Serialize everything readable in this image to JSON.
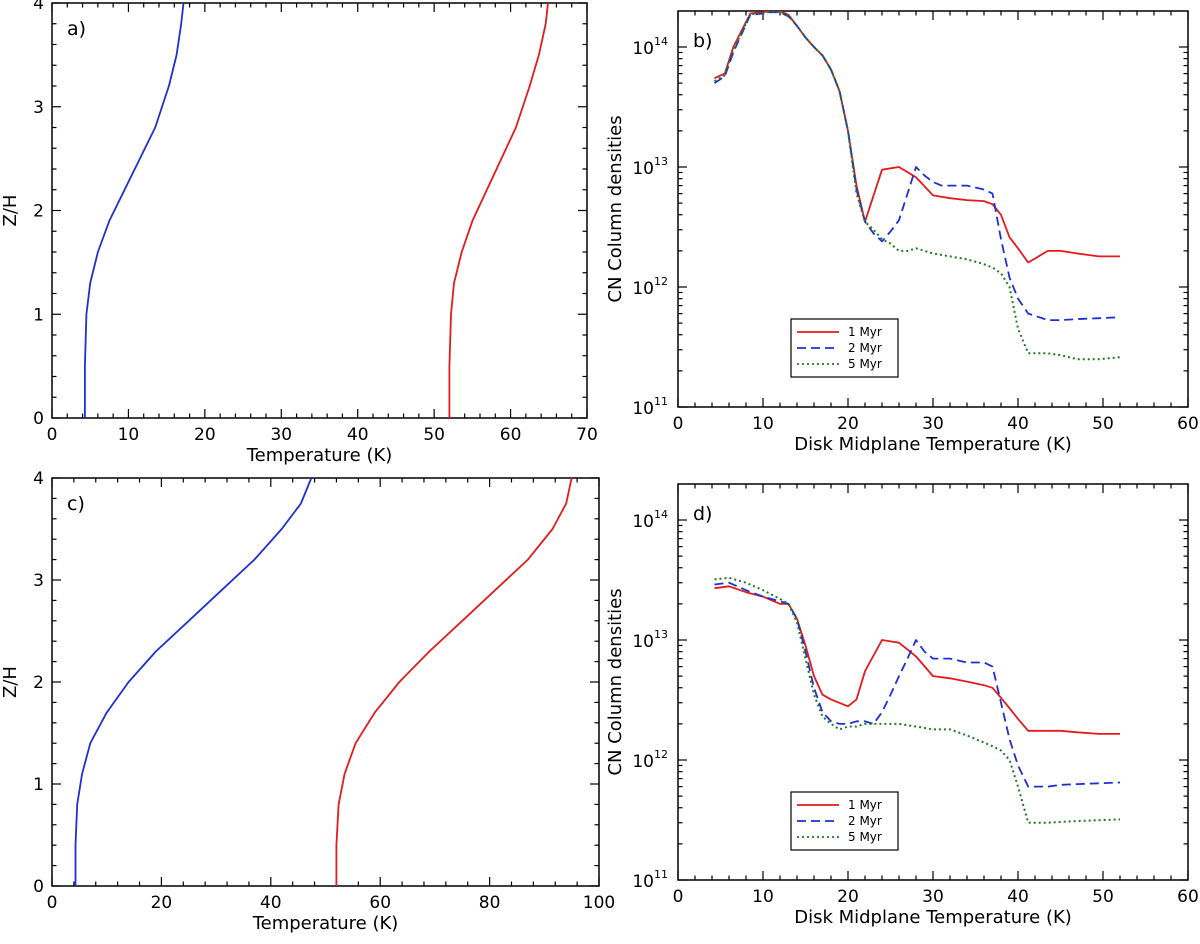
{
  "colors": {
    "red": "#e41a1c",
    "blue": "#1f2fd6",
    "green": "#1f7a1f",
    "axis": "#000000"
  },
  "chart_data": [
    {
      "id": "a",
      "type": "line",
      "label": "a)",
      "xlabel": "Temperature (K)",
      "ylabel": "Z/H",
      "xlim": [
        0,
        70
      ],
      "ylim": [
        0,
        4
      ],
      "xticks": [
        0,
        10,
        20,
        30,
        40,
        50,
        60,
        70
      ],
      "yticks": [
        0,
        1,
        2,
        3,
        4
      ],
      "series": [
        {
          "color": "blue",
          "style": "solid",
          "points": [
            [
              4.3,
              0
            ],
            [
              4.3,
              0.5
            ],
            [
              4.5,
              1.0
            ],
            [
              5.0,
              1.3
            ],
            [
              6.0,
              1.6
            ],
            [
              7.5,
              1.9
            ],
            [
              9.5,
              2.2
            ],
            [
              11.5,
              2.5
            ],
            [
              13.5,
              2.8
            ],
            [
              15.3,
              3.2
            ],
            [
              16.3,
              3.5
            ],
            [
              16.9,
              3.8
            ],
            [
              17.2,
              4.0
            ]
          ]
        },
        {
          "color": "red",
          "style": "solid",
          "points": [
            [
              52,
              0
            ],
            [
              52,
              0.5
            ],
            [
              52.2,
              1.0
            ],
            [
              52.6,
              1.3
            ],
            [
              53.6,
              1.6
            ],
            [
              55.0,
              1.9
            ],
            [
              56.9,
              2.2
            ],
            [
              58.8,
              2.5
            ],
            [
              60.7,
              2.8
            ],
            [
              62.5,
              3.2
            ],
            [
              63.7,
              3.5
            ],
            [
              64.6,
              3.8
            ],
            [
              64.9,
              4.0
            ]
          ]
        }
      ]
    },
    {
      "id": "b",
      "type": "line",
      "label": "b)",
      "xlabel": "Disk Midplane Temperature (K)",
      "ylabel": "CN Column densities",
      "xlim": [
        0,
        60
      ],
      "ylim_log10": [
        11,
        14.3
      ],
      "xticks": [
        0,
        10,
        20,
        30,
        40,
        50,
        60
      ],
      "yticks_log10": [
        11,
        12,
        13,
        14
      ],
      "legend": {
        "position": "lower-left",
        "entries": [
          "1 Myr",
          "2 Myr",
          "5 Myr"
        ]
      },
      "series": [
        {
          "color": "red",
          "style": "solid",
          "x": [
            4.3,
            5.5,
            6.5,
            8.5,
            10,
            11,
            12,
            13,
            14,
            15,
            16,
            17,
            18,
            19,
            20,
            21,
            22,
            24,
            26,
            28,
            30,
            32,
            34,
            36,
            37,
            38,
            39,
            40,
            41.2,
            43.5,
            45,
            47,
            49.5,
            52
          ],
          "y": [
            55000000000000.0,
            60000000000000.0,
            100000000000000.0,
            190000000000000.0,
            195000000000000.0,
            200000000000000.0,
            200000000000000.0,
            185000000000000.0,
            150000000000000.0,
            120000000000000.0,
            100000000000000.0,
            85000000000000.0,
            65000000000000.0,
            43000000000000.0,
            20000000000000.0,
            7000000000000.0,
            3500000000000.0,
            9500000000000.0,
            10000000000000.0,
            8200000000000.0,
            5800000000000.0,
            5500000000000.0,
            5300000000000.0,
            5200000000000.0,
            4900000000000.0,
            4000000000000.0,
            2600000000000.0,
            2100000000000.0,
            1600000000000.0,
            2000000000000.0,
            2000000000000.0,
            1900000000000.0,
            1800000000000.0,
            1800000000000.0
          ]
        },
        {
          "color": "blue",
          "style": "dashed",
          "x": [
            4.3,
            5.5,
            6.5,
            8.5,
            10,
            11,
            12,
            13,
            14,
            15,
            16,
            17,
            18,
            19,
            20,
            21,
            22,
            23,
            24,
            25,
            26,
            27,
            28,
            29,
            30,
            31,
            32,
            34,
            36,
            37,
            38,
            39,
            40,
            41.2,
            43.5,
            45,
            47,
            49.5,
            52
          ],
          "y": [
            50000000000000.0,
            57000000000000.0,
            90000000000000.0,
            185000000000000.0,
            190000000000000.0,
            195000000000000.0,
            195000000000000.0,
            180000000000000.0,
            150000000000000.0,
            120000000000000.0,
            100000000000000.0,
            85000000000000.0,
            65000000000000.0,
            43000000000000.0,
            20000000000000.0,
            6500000000000.0,
            3500000000000.0,
            2800000000000.0,
            2400000000000.0,
            2900000000000.0,
            3600000000000.0,
            6000000000000.0,
            10000000000000.0,
            8500000000000.0,
            7500000000000.0,
            7000000000000.0,
            7000000000000.0,
            7000000000000.0,
            6500000000000.0,
            6000000000000.0,
            2500000000000.0,
            1200000000000.0,
            800000000000.0,
            600000000000.0,
            530000000000.0,
            530000000000.0,
            540000000000.0,
            550000000000.0,
            560000000000.0
          ]
        },
        {
          "color": "green",
          "style": "dotted",
          "x": [
            4.3,
            5.5,
            6.5,
            8.5,
            10,
            11,
            12,
            13,
            14,
            15,
            16,
            17,
            18,
            19,
            20,
            21,
            22,
            23,
            24,
            25,
            26,
            27,
            28,
            29,
            30,
            32,
            34,
            36,
            37,
            38,
            39,
            40,
            41.2,
            43.5,
            45,
            47,
            49.5,
            52
          ],
          "y": [
            52000000000000.0,
            58000000000000.0,
            95000000000000.0,
            187000000000000.0,
            192000000000000.0,
            197000000000000.0,
            197000000000000.0,
            182000000000000.0,
            150000000000000.0,
            120000000000000.0,
            100000000000000.0,
            85000000000000.0,
            65000000000000.0,
            43000000000000.0,
            20000000000000.0,
            6000000000000.0,
            3500000000000.0,
            3000000000000.0,
            2500000000000.0,
            2300000000000.0,
            2000000000000.0,
            2000000000000.0,
            2100000000000.0,
            2000000000000.0,
            1900000000000.0,
            1800000000000.0,
            1700000000000.0,
            1550000000000.0,
            1450000000000.0,
            1300000000000.0,
            1000000000000.0,
            450000000000.0,
            280000000000.0,
            280000000000.0,
            270000000000.0,
            250000000000.0,
            250000000000.0,
            260000000000.0
          ]
        }
      ]
    },
    {
      "id": "c",
      "type": "line",
      "label": "c)",
      "xlabel": "Temperature (K)",
      "ylabel": "Z/H",
      "xlim": [
        0,
        100
      ],
      "ylim": [
        0,
        4
      ],
      "xticks": [
        0,
        20,
        40,
        60,
        80,
        100
      ],
      "yticks": [
        0,
        1,
        2,
        3,
        4
      ],
      "series": [
        {
          "color": "blue",
          "style": "solid",
          "points": [
            [
              4.3,
              0
            ],
            [
              4.3,
              0.4
            ],
            [
              4.6,
              0.8
            ],
            [
              5.5,
              1.1
            ],
            [
              7.0,
              1.4
            ],
            [
              10.0,
              1.7
            ],
            [
              14.0,
              2.0
            ],
            [
              19.0,
              2.3
            ],
            [
              25.0,
              2.6
            ],
            [
              31.0,
              2.9
            ],
            [
              37.0,
              3.2
            ],
            [
              42.0,
              3.5
            ],
            [
              45.5,
              3.75
            ],
            [
              47.4,
              4.0
            ]
          ]
        },
        {
          "color": "red",
          "style": "solid",
          "points": [
            [
              52,
              0
            ],
            [
              52,
              0.4
            ],
            [
              52.4,
              0.8
            ],
            [
              53.5,
              1.1
            ],
            [
              55.5,
              1.4
            ],
            [
              59.0,
              1.7
            ],
            [
              63.5,
              2.0
            ],
            [
              69.0,
              2.3
            ],
            [
              75.0,
              2.6
            ],
            [
              81.0,
              2.9
            ],
            [
              87.0,
              3.2
            ],
            [
              91.5,
              3.5
            ],
            [
              94.0,
              3.75
            ],
            [
              95.0,
              4.0
            ]
          ]
        }
      ]
    },
    {
      "id": "d",
      "type": "line",
      "label": "d)",
      "xlabel": "Disk Midplane Temperature (K)",
      "ylabel": "CN Column densities",
      "xlim": [
        0,
        60
      ],
      "ylim_log10": [
        11,
        14.3
      ],
      "xticks": [
        0,
        10,
        20,
        30,
        40,
        50,
        60
      ],
      "yticks_log10": [
        11,
        12,
        13,
        14
      ],
      "legend": {
        "position": "lower-left",
        "entries": [
          "1 Myr",
          "2 Myr",
          "5 Myr"
        ]
      },
      "series": [
        {
          "color": "red",
          "style": "solid",
          "x": [
            4.3,
            6,
            8,
            10,
            12,
            13,
            14,
            15,
            16,
            17,
            18,
            20,
            21,
            22,
            24,
            26,
            28,
            30,
            32,
            34,
            36,
            37,
            38,
            39,
            40,
            41.2,
            43.5,
            45,
            47,
            49.5,
            52
          ],
          "y": [
            27000000000000.0,
            28000000000000.0,
            25000000000000.0,
            23000000000000.0,
            20000000000000.0,
            20000000000000.0,
            15000000000000.0,
            9000000000000.0,
            5000000000000.0,
            3500000000000.0,
            3200000000000.0,
            2800000000000.0,
            3200000000000.0,
            5500000000000.0,
            10000000000000.0,
            9500000000000.0,
            7300000000000.0,
            5000000000000.0,
            4800000000000.0,
            4500000000000.0,
            4200000000000.0,
            4000000000000.0,
            3300000000000.0,
            2700000000000.0,
            2200000000000.0,
            1750000000000.0,
            1750000000000.0,
            1750000000000.0,
            1700000000000.0,
            1650000000000.0,
            1650000000000.0
          ]
        },
        {
          "color": "blue",
          "style": "dashed",
          "x": [
            4.3,
            6,
            8,
            10,
            12,
            13,
            14,
            15,
            16,
            17,
            18,
            19,
            20,
            21,
            22,
            23,
            24,
            25,
            26,
            27,
            28,
            29,
            30,
            32,
            34,
            36,
            37,
            38,
            39,
            40,
            41.2,
            43.5,
            45,
            47,
            49.5,
            52
          ],
          "y": [
            29000000000000.0,
            30000000000000.0,
            26000000000000.0,
            23000000000000.0,
            21000000000000.0,
            20000000000000.0,
            15000000000000.0,
            8000000000000.0,
            4000000000000.0,
            2500000000000.0,
            2100000000000.0,
            2000000000000.0,
            2000000000000.0,
            2100000000000.0,
            2100000000000.0,
            2000000000000.0,
            2500000000000.0,
            3500000000000.0,
            5000000000000.0,
            7000000000000.0,
            10000000000000.0,
            8000000000000.0,
            7000000000000.0,
            7000000000000.0,
            6500000000000.0,
            6500000000000.0,
            6000000000000.0,
            3000000000000.0,
            1500000000000.0,
            900000000000.0,
            600000000000.0,
            600000000000.0,
            620000000000.0,
            630000000000.0,
            640000000000.0,
            650000000000.0
          ]
        },
        {
          "color": "green",
          "style": "dotted",
          "x": [
            4.3,
            6,
            8,
            10,
            12,
            13,
            14,
            15,
            16,
            17,
            18,
            19,
            20,
            21,
            22,
            24,
            26,
            28,
            30,
            32,
            34,
            36,
            37,
            38,
            39,
            40,
            41.2,
            43.5,
            45,
            47,
            49.5,
            52
          ],
          "y": [
            32000000000000.0,
            33000000000000.0,
            30000000000000.0,
            26000000000000.0,
            22000000000000.0,
            20000000000000.0,
            14000000000000.0,
            7000000000000.0,
            3500000000000.0,
            2300000000000.0,
            2000000000000.0,
            1800000000000.0,
            1900000000000.0,
            1900000000000.0,
            2000000000000.0,
            2000000000000.0,
            2000000000000.0,
            1900000000000.0,
            1800000000000.0,
            1800000000000.0,
            1600000000000.0,
            1400000000000.0,
            1300000000000.0,
            1200000000000.0,
            1000000000000.0,
            600000000000.0,
            300000000000.0,
            300000000000.0,
            305000000000.0,
            310000000000.0,
            315000000000.0,
            320000000000.0
          ]
        }
      ]
    }
  ]
}
